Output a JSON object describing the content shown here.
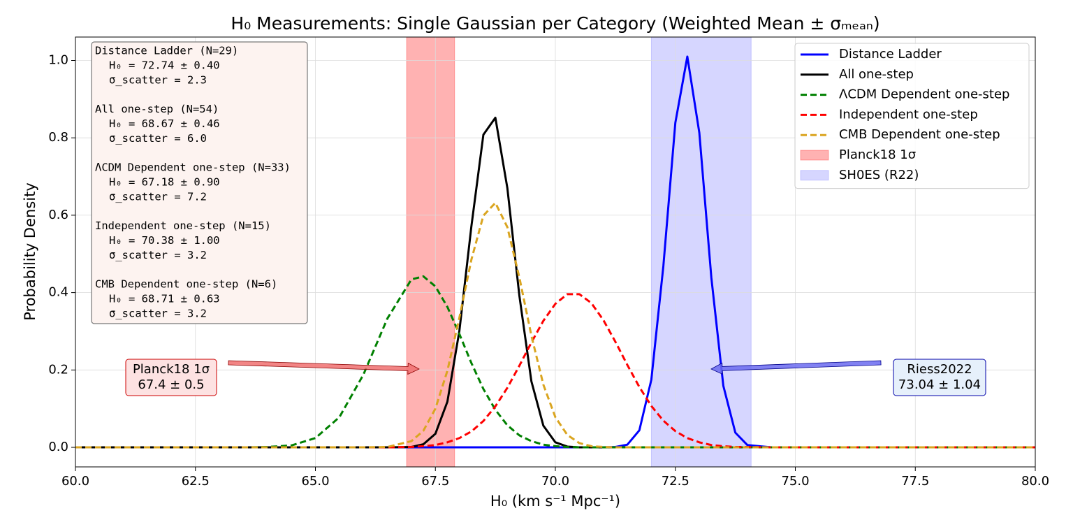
{
  "chart_data": {
    "type": "line",
    "title": "H₀ Measurements: Single Gaussian per Category (Weighted Mean ± σₘₑₐₙ)",
    "x_label": "H₀ (km s⁻¹ Mpc⁻¹)",
    "y_label": "Probability Density",
    "x": [
      60,
      62,
      63,
      63.5,
      64,
      64.5,
      65,
      65.5,
      66,
      66.5,
      67,
      67.25,
      67.5,
      67.75,
      68,
      68.25,
      68.5,
      68.75,
      69,
      69.25,
      69.5,
      69.75,
      70,
      70.25,
      70.5,
      70.75,
      71,
      71.25,
      71.5,
      71.75,
      72,
      72.25,
      72.5,
      72.75,
      73,
      73.25,
      73.5,
      73.75,
      74,
      74.5,
      75,
      76,
      77,
      80
    ],
    "series": [
      {
        "name": "Distance Ladder",
        "color": "#0000ff",
        "style": "solid",
        "values": [
          0,
          0,
          0,
          0,
          0,
          0,
          0,
          0,
          0,
          0,
          0,
          0,
          0,
          0,
          0,
          0,
          0,
          0,
          0,
          0,
          0,
          0,
          0,
          0,
          0,
          0,
          0,
          0.001,
          0.007,
          0.044,
          0.175,
          0.468,
          0.839,
          1.01,
          0.813,
          0.439,
          0.159,
          0.038,
          0.006,
          0,
          0,
          0,
          0,
          0
        ]
      },
      {
        "name": "All one-step",
        "color": "#000000",
        "style": "solid",
        "values": [
          0,
          0,
          0,
          0,
          0,
          0,
          0,
          0,
          0,
          0,
          0.001,
          0.008,
          0.035,
          0.118,
          0.301,
          0.571,
          0.808,
          0.852,
          0.67,
          0.392,
          0.171,
          0.056,
          0.013,
          0.002,
          0,
          0,
          0,
          0,
          0,
          0,
          0,
          0,
          0,
          0,
          0,
          0,
          0,
          0,
          0,
          0,
          0,
          0,
          0,
          0
        ]
      },
      {
        "name": "ΛCDM Dependent one-step",
        "color": "#008000",
        "style": "dashed",
        "values": [
          0,
          0,
          0,
          0,
          0.001,
          0.005,
          0.024,
          0.078,
          0.188,
          0.333,
          0.434,
          0.442,
          0.416,
          0.363,
          0.293,
          0.218,
          0.151,
          0.097,
          0.057,
          0.031,
          0.016,
          0.007,
          0.003,
          0.001,
          0,
          0,
          0,
          0,
          0,
          0,
          0,
          0,
          0,
          0,
          0,
          0,
          0,
          0,
          0,
          0,
          0,
          0,
          0,
          0
        ]
      },
      {
        "name": "Independent one-step",
        "color": "#ff0000",
        "style": "dashed",
        "values": [
          0,
          0,
          0,
          0,
          0,
          0,
          0,
          0,
          0,
          0,
          0.001,
          0.003,
          0.006,
          0.013,
          0.024,
          0.041,
          0.068,
          0.106,
          0.154,
          0.211,
          0.271,
          0.327,
          0.371,
          0.396,
          0.396,
          0.373,
          0.329,
          0.273,
          0.213,
          0.156,
          0.107,
          0.069,
          0.042,
          0.024,
          0.013,
          0.006,
          0.003,
          0.001,
          0.001,
          0,
          0,
          0,
          0,
          0
        ]
      },
      {
        "name": "CMB Dependent one-step",
        "color": "#daa520",
        "style": "dashed",
        "values": [
          0,
          0,
          0,
          0,
          0,
          0,
          0,
          0,
          0,
          0.001,
          0.016,
          0.043,
          0.1,
          0.198,
          0.335,
          0.485,
          0.599,
          0.632,
          0.569,
          0.439,
          0.289,
          0.162,
          0.078,
          0.032,
          0.011,
          0.003,
          0.001,
          0,
          0,
          0,
          0,
          0,
          0,
          0,
          0,
          0,
          0,
          0,
          0,
          0,
          0,
          0,
          0,
          0
        ]
      }
    ],
    "bands": [
      {
        "name": "Planck18 1σ",
        "color": "#ff0000",
        "opacity": 0.3,
        "range": [
          66.9,
          67.9
        ]
      },
      {
        "name": "SH0ES (R22)",
        "color": "#0000ff",
        "opacity": 0.16,
        "range": [
          72.0,
          74.08
        ]
      }
    ],
    "xlim": [
      60,
      80
    ],
    "ylim": [
      -0.0505,
      1.0605
    ],
    "xticks": [
      {
        "value": 60,
        "label": "60.0"
      },
      62.5,
      {
        "value": 65,
        "label": "65.0"
      },
      67.5,
      {
        "value": 70,
        "label": "70.0"
      },
      72.5,
      {
        "value": 75,
        "label": "75.0"
      },
      77.5,
      {
        "value": 80,
        "label": "80.0"
      }
    ],
    "yticks": [
      {
        "value": 0,
        "label": "0.0"
      },
      0.2,
      0.4,
      0.6,
      0.8,
      {
        "value": 1,
        "label": "1.0"
      }
    ],
    "grid": true,
    "legend": "upper right",
    "text_box": [
      {
        "title": "Distance Ladder (N=29)",
        "lines": [
          "H₀ = 72.74 ± 0.40",
          "σ_scatter = 2.3"
        ]
      },
      {
        "title": "All one-step (N=54)",
        "lines": [
          "H₀ = 68.67 ± 0.46",
          "σ_scatter = 6.0"
        ]
      },
      {
        "title": "ΛCDM Dependent one-step (N=33)",
        "lines": [
          "H₀ = 67.18 ± 0.90",
          "σ_scatter = 7.2"
        ]
      },
      {
        "title": "Independent one-step (N=15)",
        "lines": [
          "H₀ = 70.38 ± 1.00",
          "σ_scatter = 3.2"
        ]
      },
      {
        "title": "CMB Dependent one-step (N=6)",
        "lines": [
          "H₀ = 68.71 ± 0.63",
          "σ_scatter = 3.2"
        ]
      }
    ],
    "annotations": [
      {
        "lines": [
          "Planck18 1σ",
          "67.4 ± 0.5"
        ]
      },
      {
        "lines": [
          "Riess2022",
          "73.04 ± 1.04"
        ]
      }
    ]
  }
}
